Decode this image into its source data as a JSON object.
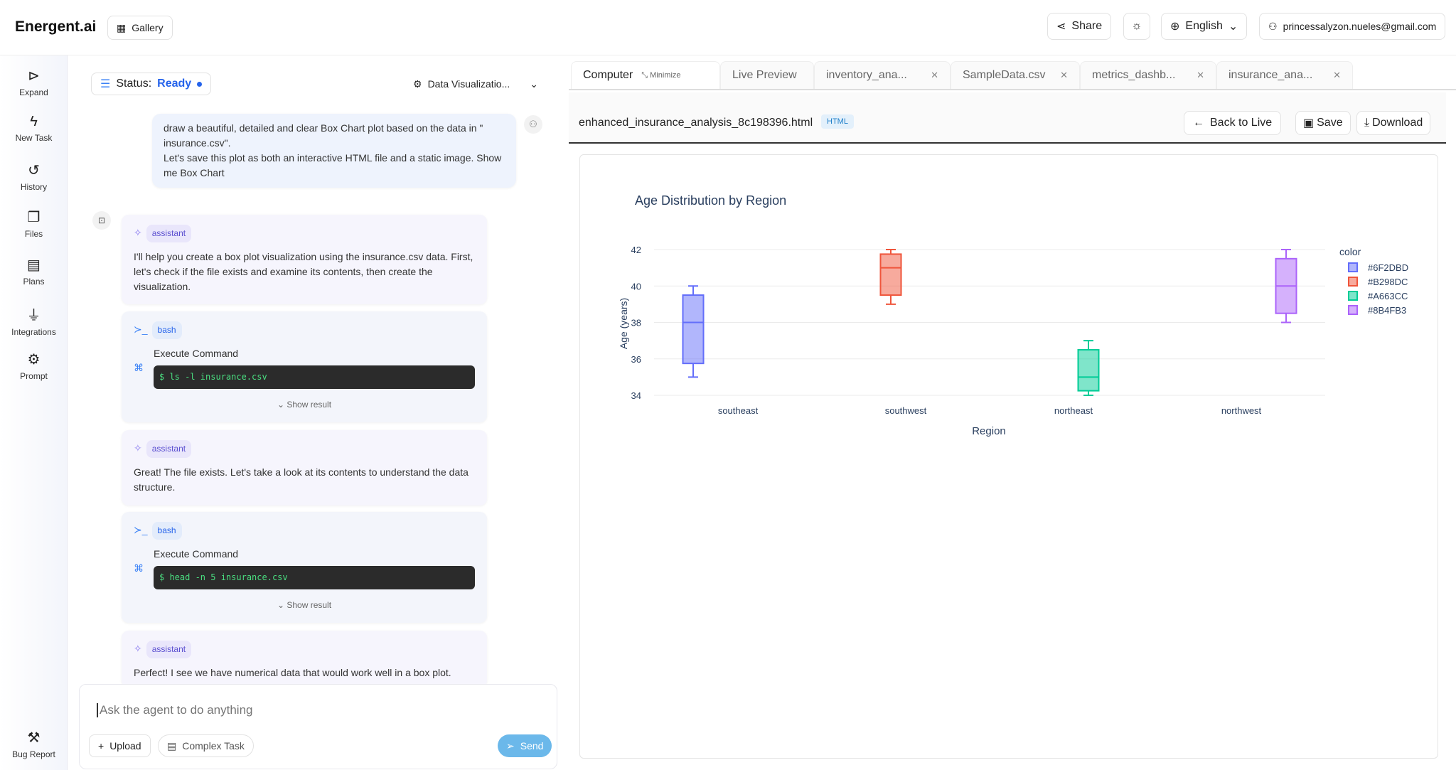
{
  "app": {
    "logo": "Energent.ai",
    "gallery": "Gallery",
    "share": "Share",
    "language": "English",
    "user": "princessalyzon.nueles@gmail.com"
  },
  "sidebar": {
    "items": [
      {
        "label": "Expand",
        "icon": "expand-icon"
      },
      {
        "label": "New Task",
        "icon": "bolt-icon"
      },
      {
        "label": "History",
        "icon": "history-icon"
      },
      {
        "label": "Files",
        "icon": "files-icon"
      },
      {
        "label": "Plans",
        "icon": "clipboard-icon"
      },
      {
        "label": "Integrations",
        "icon": "plug-icon"
      },
      {
        "label": "Prompt",
        "icon": "gear-icon"
      }
    ],
    "bug_report": "Bug Report"
  },
  "chat": {
    "status_label": "Status:",
    "status_value": "Ready",
    "mode": "Data Visualizatio...",
    "user_message_1": "draw a beautiful, detailed and clear Box Chart plot based on the data in \" insurance.csv\".",
    "user_message_2": "Let's save this plot as both an interactive HTML file and a static image. Show me Box Chart",
    "messages": [
      {
        "role": "assistant",
        "text": "I'll help you create a box plot visualization using the insurance.csv data. First, let's check if the file exists and examine its contents, then create the visualization."
      },
      {
        "role": "bash",
        "title": "Execute Command",
        "command": "$ ls -l insurance.csv",
        "show": "Show result"
      },
      {
        "role": "assistant",
        "text": "Great! The file exists. Let's take a look at its contents to understand the data structure."
      },
      {
        "role": "bash",
        "title": "Execute Command",
        "command": "$ head -n 5 insurance.csv",
        "show": "Show result"
      },
      {
        "role": "assistant",
        "text": "Perfect! I see we have numerical data that would work well in a box plot."
      }
    ],
    "input_placeholder": "Ask the agent to do anything",
    "upload": "Upload",
    "complex_task": "Complex Task",
    "send": "Send"
  },
  "panel": {
    "tabs": [
      {
        "label": "Computer",
        "extra": "Minimize"
      },
      {
        "label": "Live Preview"
      },
      {
        "label": "inventory_ana..."
      },
      {
        "label": "SampleData.csv"
      },
      {
        "label": "metrics_dashb..."
      },
      {
        "label": "insurance_ana..."
      }
    ],
    "filename": "enhanced_insurance_analysis_8c198396.html",
    "filetype": "HTML",
    "back": "Back to Live",
    "save": "Save",
    "download": "Download"
  },
  "chart_data": {
    "type": "box",
    "title": "Age Distribution by Region",
    "xlabel": "Region",
    "ylabel": "Age (years)",
    "categories": [
      "southeast",
      "southwest",
      "northeast",
      "northwest"
    ],
    "ylim": [
      33.6,
      42.4
    ],
    "yticks": [
      34,
      36,
      38,
      40,
      42
    ],
    "grid": true,
    "legend_title": "color",
    "legend_position": "right",
    "series": [
      {
        "name": "#6F2DBD",
        "color": "#636efa",
        "category": "southeast",
        "min": 35,
        "q1": 35.75,
        "median": 38,
        "q3": 39.5,
        "max": 40
      },
      {
        "name": "#B298DC",
        "color": "#ef553b",
        "category": "southwest",
        "min": 39,
        "q1": 39.5,
        "median": 41,
        "q3": 41.75,
        "max": 42
      },
      {
        "name": "#A663CC",
        "color": "#00cc96",
        "category": "northeast",
        "min": 34,
        "q1": 34.25,
        "median": 35,
        "q3": 36.5,
        "max": 37
      },
      {
        "name": "#8B4FB3",
        "color": "#ab63fa",
        "category": "northwest",
        "min": 38,
        "q1": 38.5,
        "median": 40,
        "q3": 41.5,
        "max": 42
      }
    ]
  }
}
